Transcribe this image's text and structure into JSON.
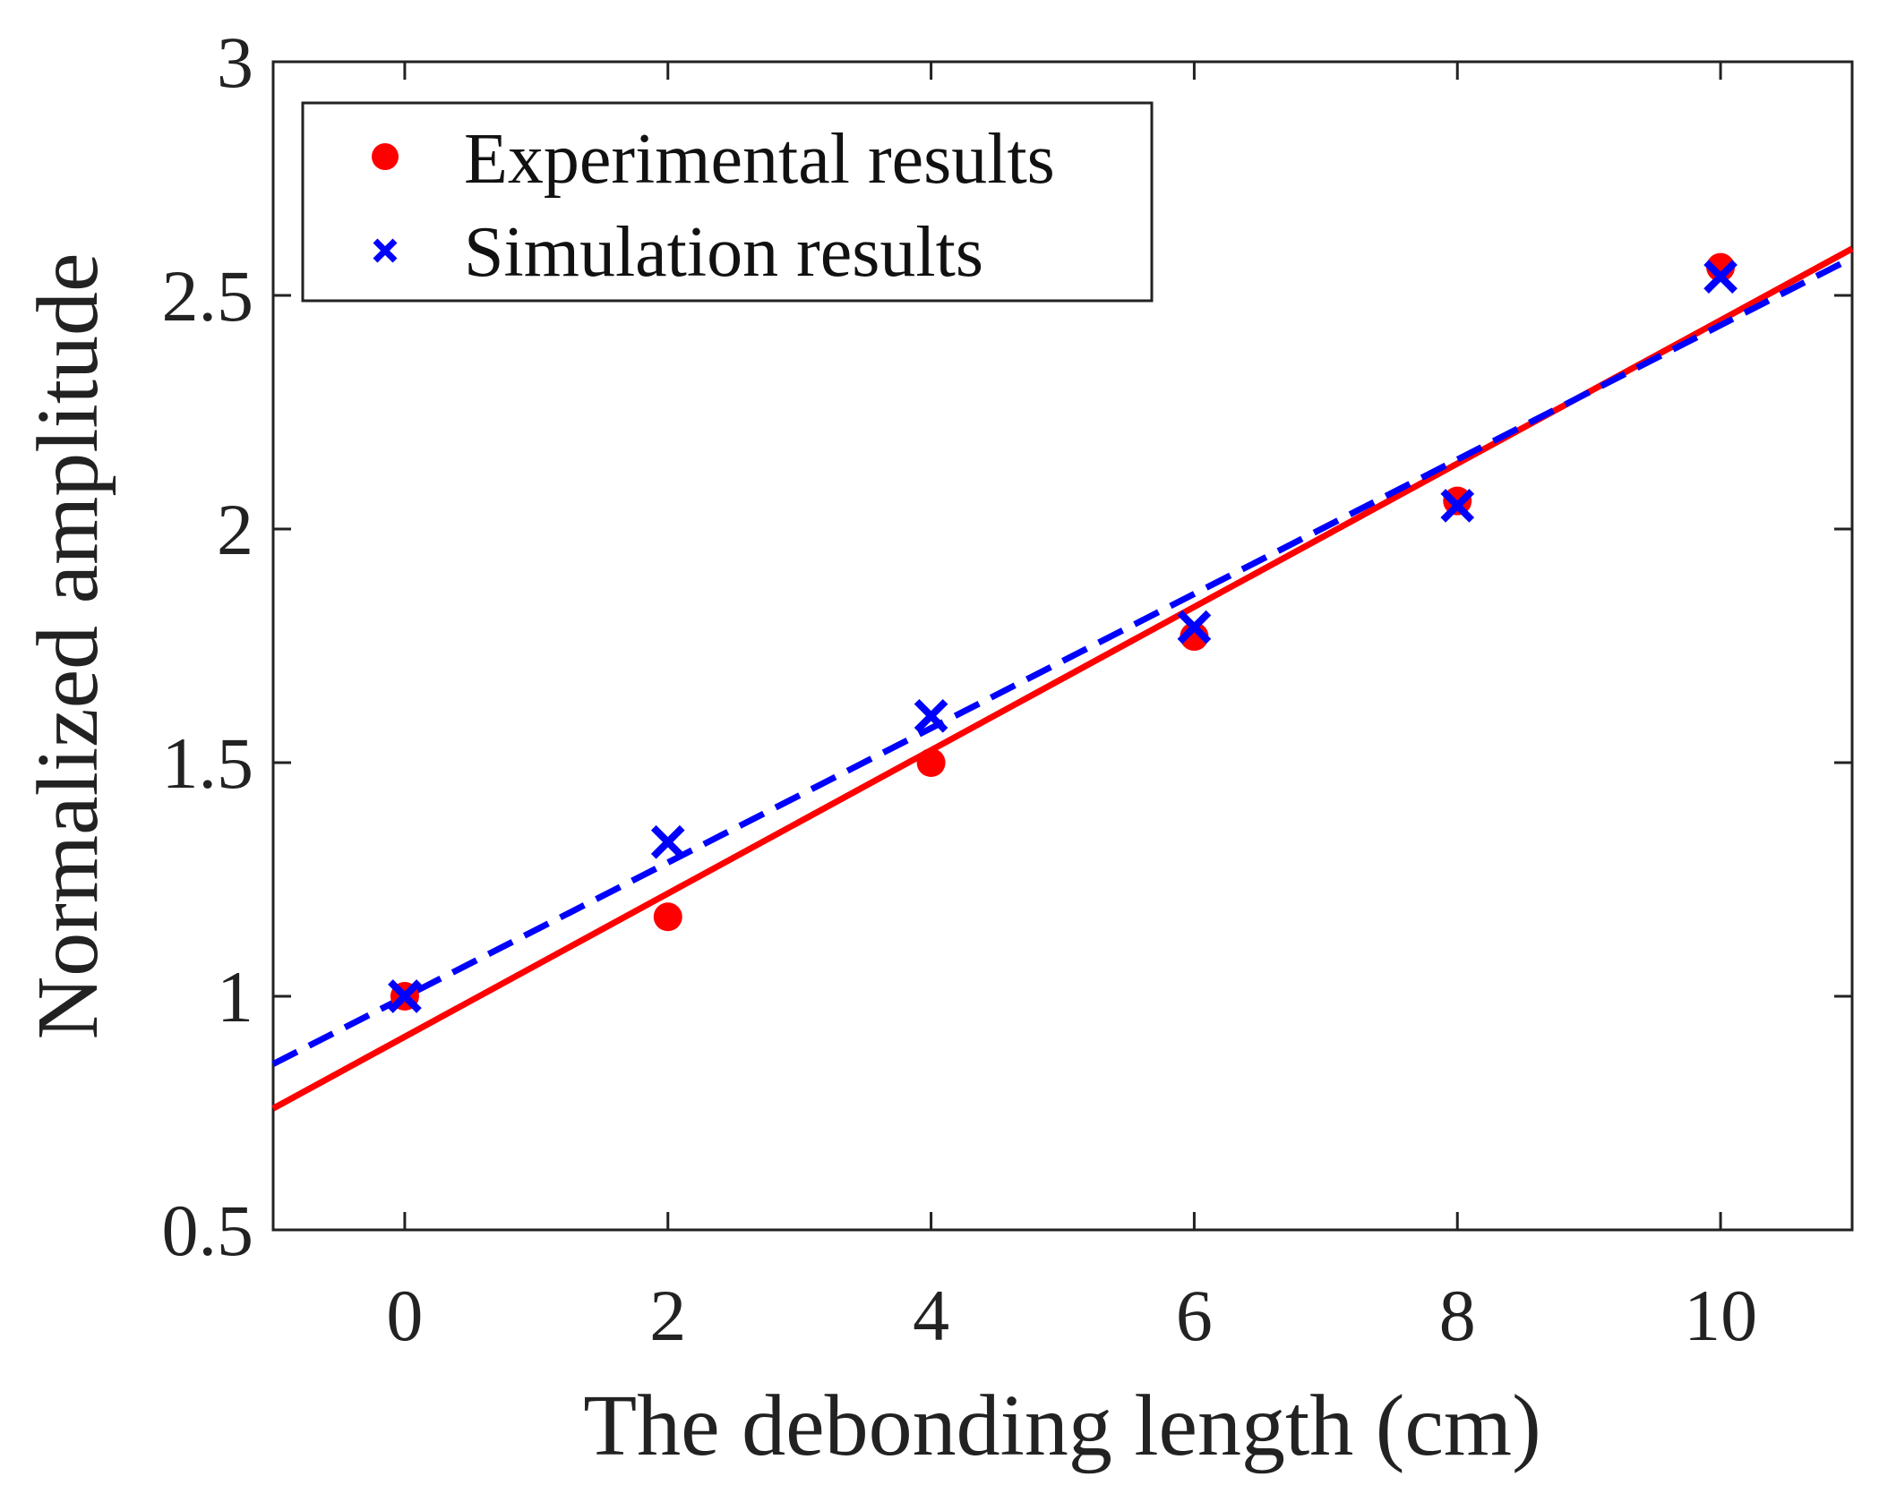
{
  "chart_data": {
    "type": "scatter",
    "title": "",
    "xlabel": "The debonding length (cm)",
    "ylabel": "Normalized amplitude",
    "xlim": [
      -1,
      11
    ],
    "ylim": [
      0.5,
      3
    ],
    "xticks": [
      0,
      2,
      4,
      6,
      8,
      10
    ],
    "yticks": [
      0.5,
      1,
      1.5,
      2,
      2.5,
      3
    ],
    "xtick_labels": [
      "0",
      "2",
      "4",
      "6",
      "8",
      "10"
    ],
    "ytick_labels": [
      "0.5",
      "1",
      "1.5",
      "2",
      "2.5",
      "3"
    ],
    "grid": false,
    "legend_position": "top-left",
    "series": [
      {
        "name": "Experimental results",
        "marker": "circle",
        "color": "#ff0000",
        "x": [
          0,
          2,
          4,
          6,
          8,
          10
        ],
        "y": [
          1.0,
          1.17,
          1.5,
          1.77,
          2.06,
          2.56
        ]
      },
      {
        "name": "Simulation results",
        "marker": "x",
        "color": "#0000ff",
        "x": [
          0,
          2,
          4,
          6,
          8,
          10
        ],
        "y": [
          1.0,
          1.33,
          1.6,
          1.79,
          2.05,
          2.54
        ]
      }
    ],
    "fit_lines": [
      {
        "series": "Experimental results",
        "style": "solid",
        "color": "#ff0000",
        "x_range": [
          -1,
          11
        ],
        "y_range": [
          0.76,
          2.6
        ]
      },
      {
        "series": "Simulation results",
        "style": "dashed",
        "color": "#0000ff",
        "x_range": [
          -1,
          11
        ],
        "y_range": [
          0.855,
          2.58
        ]
      }
    ]
  }
}
